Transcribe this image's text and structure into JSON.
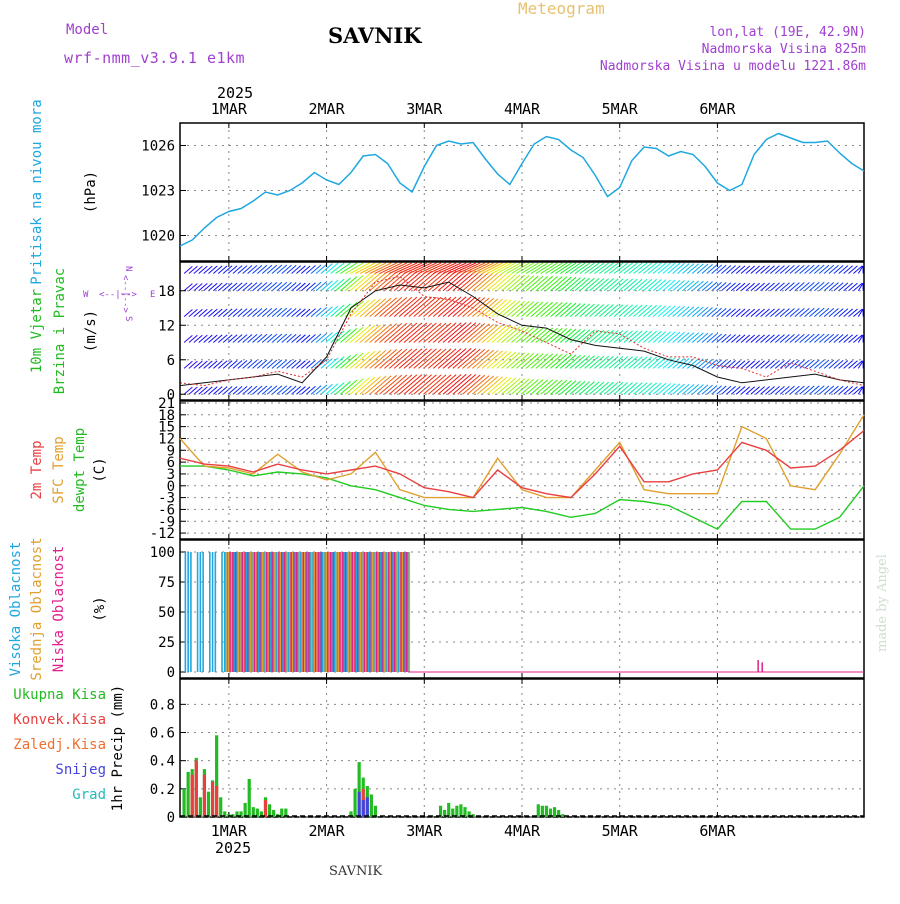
{
  "header": {
    "app_title": "Meteogram",
    "station": "SAVNIK",
    "model_label": "Model",
    "model_name": "wrf-nmm_v3.9.1 e1km",
    "coords": "lon,lat (19E, 42.9N)",
    "elevation": "Nadmorska Visina 825m",
    "model_elevation": "Nadmorska Visina u modelu 1221.86m",
    "watermark": "made by Angel",
    "footer_station": "SAVNIK"
  },
  "colors": {
    "pressure": "#1fa7e0",
    "temp2m": "#e84040",
    "sfc_temp": "#e0a030",
    "dewpoint": "#22cc22",
    "high_cloud": "#1fa7e0",
    "mid_cloud": "#e0a030",
    "low_cloud": "#e0208a",
    "total_precip": "#22bb22",
    "conv_precip": "#e84040",
    "frozen_precip": "#f07030",
    "snow": "#4444dd",
    "hail": "#22bbbb",
    "title_purple": "#a040d0",
    "meteogram_gold": "#e8c070"
  },
  "chart_data": [
    {
      "type": "line",
      "panel": "pressure",
      "title": "",
      "ylabel_text": "Pritisak na nivou mora",
      "ylabel_unit": "(hPa)",
      "year_label": "2025",
      "day_labels": [
        "1MAR",
        "2MAR",
        "3MAR",
        "4MAR",
        "5MAR",
        "6MAR"
      ],
      "y_ticks": [
        1020,
        1023,
        1026
      ],
      "ylim": [
        1018.3,
        1027.5
      ],
      "x_range_hours": [
        -12,
        156
      ],
      "series": [
        {
          "x": [
            -12,
            -9,
            -6,
            -3,
            0,
            3,
            6,
            9,
            12,
            15,
            18,
            21,
            24,
            27,
            30,
            33,
            36,
            39,
            42,
            45,
            48,
            51,
            54,
            57,
            60,
            63,
            66,
            69,
            72,
            75,
            78,
            81,
            84,
            87,
            90,
            93,
            96,
            99,
            102,
            105,
            108,
            111,
            114,
            117,
            120,
            123,
            126,
            129,
            132,
            135,
            138,
            141,
            144,
            147,
            150,
            153,
            156
          ],
          "values": [
            1019.3,
            1019.7,
            1020.5,
            1021.2,
            1021.6,
            1021.8,
            1022.3,
            1022.9,
            1022.7,
            1023.0,
            1023.5,
            1024.2,
            1023.7,
            1023.4,
            1024.2,
            1025.3,
            1025.4,
            1024.8,
            1023.5,
            1022.9,
            1024.6,
            1026.0,
            1026.3,
            1026.1,
            1026.2,
            1025.1,
            1024.1,
            1023.4,
            1024.8,
            1026.1,
            1026.6,
            1026.4,
            1025.7,
            1025.2,
            1024.0,
            1022.6,
            1023.2,
            1025.0,
            1025.9,
            1025.8,
            1025.3,
            1025.6,
            1025.4,
            1024.6,
            1023.5,
            1023.0,
            1023.4,
            1025.4,
            1026.4,
            1026.8,
            1026.5,
            1026.2,
            1026.2,
            1026.3,
            1025.5,
            1024.8,
            1024.3
          ]
        }
      ]
    },
    {
      "type": "line",
      "panel": "wind",
      "title": "",
      "ylabel_text_1": "10m Vjetar",
      "ylabel_text_2": "Brzina i Pravac",
      "ylabel_unit": "(m/s)",
      "compass": {
        "n": "N",
        "s": "S",
        "e": "E",
        "w": "W",
        "arrow_h": "<--|-->",
        "arrow_v": "<--|-->"
      },
      "y_ticks": [
        0,
        6,
        12,
        18
      ],
      "ylim": [
        -1,
        23
      ],
      "x_range_hours": [
        -12,
        156
      ],
      "series": [
        {
          "name": "speed",
          "x": [
            -12,
            -6,
            0,
            6,
            12,
            18,
            24,
            30,
            36,
            42,
            48,
            54,
            60,
            66,
            72,
            78,
            84,
            90,
            96,
            102,
            108,
            114,
            120,
            126,
            132,
            138,
            144,
            150,
            156
          ],
          "values": [
            1.5,
            2.0,
            2.5,
            3.0,
            3.5,
            2.0,
            6.5,
            15.0,
            18.0,
            19.0,
            18.5,
            19.5,
            17.0,
            14.0,
            12.0,
            11.5,
            9.5,
            8.5,
            8.0,
            7.5,
            6.0,
            5.0,
            3.0,
            2.0,
            2.5,
            3.0,
            3.5,
            2.5,
            2.0
          ]
        },
        {
          "name": "gust",
          "x": [
            -12,
            -6,
            0,
            6,
            12,
            18,
            24,
            30,
            36,
            42,
            48,
            54,
            60,
            66,
            72,
            78,
            84,
            90,
            96,
            102,
            108,
            114,
            120,
            126,
            132,
            138,
            144,
            150,
            156
          ],
          "values": [
            2.0,
            1.5,
            2.5,
            3.0,
            4.0,
            3.0,
            6.0,
            14.0,
            19.5,
            20.5,
            17.0,
            16.5,
            15.0,
            12.5,
            11.0,
            9.0,
            7.0,
            11.0,
            10.5,
            8.0,
            6.5,
            6.5,
            5.0,
            4.5,
            3.0,
            5.5,
            4.0,
            2.5,
            1.5
          ]
        }
      ]
    },
    {
      "type": "line",
      "panel": "temperature",
      "title": "",
      "ylabel_text_1": "2m Temp",
      "ylabel_text_2": "SFC Temp",
      "ylabel_text_3": "dewpt Temp",
      "ylabel_unit": "(C)",
      "y_ticks": [
        -12,
        -9,
        -6,
        -3,
        0,
        3,
        6,
        9,
        12,
        15,
        18,
        21
      ],
      "ylim": [
        -13.5,
        21.5
      ],
      "x_range_hours": [
        -12,
        156
      ],
      "series": [
        {
          "name": "2m Temp",
          "x": [
            -12,
            -6,
            0,
            6,
            12,
            18,
            24,
            30,
            36,
            42,
            48,
            54,
            60,
            66,
            72,
            78,
            84,
            90,
            96,
            102,
            108,
            114,
            120,
            126,
            132,
            138,
            144,
            150,
            156
          ],
          "values": [
            7,
            5.5,
            5,
            3.5,
            5.5,
            4,
            3,
            4,
            5,
            3,
            -0.5,
            -1.5,
            -3,
            4,
            -0.5,
            -2,
            -3,
            3,
            10,
            1,
            1,
            3,
            4,
            11,
            9,
            4.5,
            5,
            9,
            14
          ]
        },
        {
          "name": "SFC Temp",
          "x": [
            -12,
            -6,
            0,
            6,
            12,
            18,
            24,
            30,
            36,
            42,
            48,
            54,
            60,
            66,
            72,
            78,
            84,
            90,
            96,
            102,
            108,
            114,
            120,
            126,
            132,
            138,
            144,
            150,
            156
          ],
          "values": [
            12,
            5,
            4.5,
            3,
            8,
            3.5,
            1.5,
            3,
            8.5,
            -1,
            -3,
            -3,
            -3,
            7,
            -1,
            -3,
            -3,
            4,
            11,
            -1,
            -2,
            -2,
            -2,
            15,
            12,
            0,
            -1,
            8,
            18
          ]
        },
        {
          "name": "dewpt Temp",
          "x": [
            -12,
            -6,
            0,
            6,
            12,
            18,
            24,
            30,
            36,
            42,
            48,
            54,
            60,
            66,
            72,
            78,
            84,
            90,
            96,
            102,
            108,
            114,
            120,
            126,
            132,
            138,
            144,
            150,
            156
          ],
          "values": [
            5,
            5,
            4,
            2.5,
            3.5,
            3,
            2,
            0,
            -1,
            -3,
            -5,
            -6,
            -6.5,
            -6,
            -5.5,
            -6.5,
            -8,
            -7,
            -3.5,
            -4,
            -5,
            -8,
            -11,
            -4,
            -4,
            -11,
            -11,
            -8,
            0
          ]
        }
      ]
    },
    {
      "type": "bar",
      "panel": "cloud",
      "title": "",
      "ylabel_text_1": "Visoka Oblacnost",
      "ylabel_text_2": "Srednja Oblacnost",
      "ylabel_text_3": "Niska Oblacnost",
      "ylabel_unit": "(%)",
      "y_ticks": [
        0,
        25,
        50,
        75,
        100
      ],
      "ylim": [
        -5,
        110
      ],
      "x_range_hours": [
        -12,
        156
      ],
      "cloudy_period_hours": [
        -11,
        44
      ],
      "series": [
        {
          "name": "Visoka Oblacnost",
          "value_when_cloudy": 100
        },
        {
          "name": "Srednja Oblacnost",
          "value_when_cloudy": 100
        },
        {
          "name": "Niska Oblacnost",
          "value_when_cloudy": 100
        }
      ],
      "late_spikes": [
        {
          "x": 130,
          "value": 10
        },
        {
          "x": 131,
          "value": 8
        }
      ]
    },
    {
      "type": "bar",
      "panel": "precip",
      "title": "",
      "ylabel_text": "1hr Precip (mm)",
      "legend": [
        "Ukupna Kisa",
        "Konvek.Kisa",
        "Zaledj.Kisa",
        "Snijeg",
        "Grad"
      ],
      "y_ticks": [
        0,
        0.2,
        0.4,
        0.6,
        0.8
      ],
      "ylim": [
        0,
        0.98
      ],
      "x_range_hours": [
        -12,
        156
      ],
      "bottom_year_label": "2025",
      "series": [
        {
          "name": "Ukupna Kisa",
          "x": [
            -11,
            -10,
            -9,
            -8,
            -7,
            -6,
            -5,
            -4,
            -3,
            -2,
            -1,
            0,
            1,
            2,
            3,
            4,
            5,
            6,
            7,
            8,
            9,
            10,
            11,
            12,
            13,
            14,
            15,
            16,
            17,
            18,
            30,
            31,
            32,
            33,
            34,
            35,
            36,
            38,
            52,
            53,
            54,
            55,
            56,
            57,
            58,
            59,
            60,
            76,
            77,
            78,
            79,
            80,
            81,
            82
          ],
          "values": [
            0.2,
            0.32,
            0.34,
            0.42,
            0.14,
            0.34,
            0.18,
            0.26,
            0.58,
            0.14,
            0.04,
            0.02,
            0.02,
            0.04,
            0.04,
            0.1,
            0.27,
            0.07,
            0.06,
            0.04,
            0.14,
            0.09,
            0.05,
            0.02,
            0.06,
            0.06,
            0.0,
            0.0,
            0.0,
            0.0,
            0.04,
            0.2,
            0.39,
            0.28,
            0.22,
            0.16,
            0.08,
            0.0,
            0.08,
            0.05,
            0.1,
            0.06,
            0.08,
            0.09,
            0.07,
            0.04,
            0.02,
            0.09,
            0.08,
            0.08,
            0.06,
            0.07,
            0.05,
            0.02
          ]
        },
        {
          "name": "Konvek.Kisa",
          "x": [
            -11,
            -9,
            -8,
            -6,
            -4,
            -3,
            3,
            9,
            33
          ],
          "values": [
            0.0,
            0.3,
            0.4,
            0.3,
            0.25,
            0.22,
            0.0,
            0.12,
            0.2
          ]
        },
        {
          "name": "Snijeg",
          "x": [
            32,
            33,
            34
          ],
          "values": [
            0.18,
            0.12,
            0.14
          ]
        }
      ]
    }
  ]
}
